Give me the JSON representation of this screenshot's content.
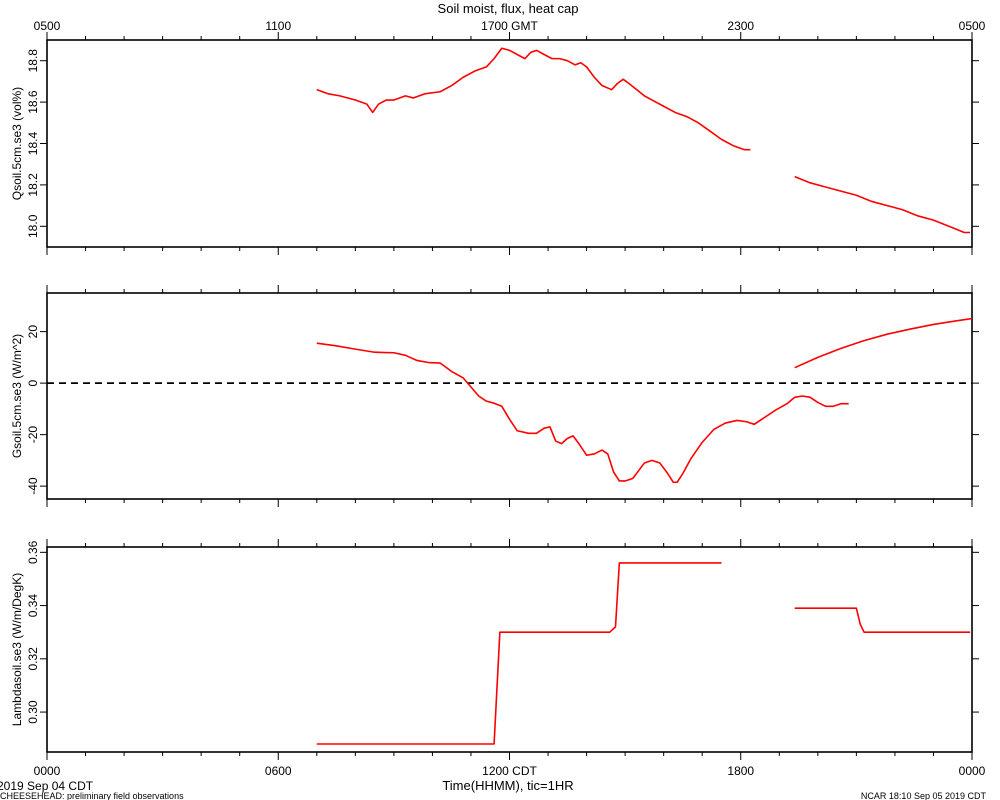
{
  "chart_data": {
    "type": "line",
    "title": "Soil moist, flux, heat cap",
    "top_axis": {
      "ticks": [
        {
          "h": 0,
          "label": "0500"
        },
        {
          "h": 6,
          "label": "1100"
        },
        {
          "h": 12,
          "label": "1700 GMT"
        },
        {
          "h": 18,
          "label": "2300"
        },
        {
          "h": 24,
          "label": "0500"
        }
      ]
    },
    "bottom_axis": {
      "xlabel": "Time(HHMM), tic=1HR",
      "ticks": [
        {
          "h": 0,
          "label": "0000"
        },
        {
          "h": 6,
          "label": "0600"
        },
        {
          "h": 12,
          "label": "1200 CDT"
        },
        {
          "h": 18,
          "label": "1800"
        },
        {
          "h": 24,
          "label": "0000"
        }
      ],
      "xlim": [
        0,
        24
      ],
      "minor_tick_interval_hours": 1
    },
    "footer": {
      "date": "2019 Sep 04 CDT",
      "left": "CHEESEHEAD: preliminary field observations",
      "right": "NCAR 18:10 Sep 05 2019 CDT"
    },
    "panels": [
      {
        "ylabel": "Qsoil.5cm.se3 (vol%)",
        "ylim": [
          17.9,
          18.9
        ],
        "yticks": [
          18.0,
          18.2,
          18.4,
          18.6,
          18.8
        ],
        "ytick_labels": [
          "18.0",
          "18.2",
          "18.4",
          "18.6",
          "18.8"
        ],
        "series": [
          {
            "color": "#ff0000",
            "segments": [
              [
                [
                  7.0,
                  18.66
                ],
                [
                  7.3,
                  18.64
                ],
                [
                  7.6,
                  18.63
                ],
                [
                  8.0,
                  18.61
                ],
                [
                  8.3,
                  18.59
                ],
                [
                  8.45,
                  18.55
                ],
                [
                  8.6,
                  18.59
                ],
                [
                  8.8,
                  18.61
                ],
                [
                  9.0,
                  18.61
                ],
                [
                  9.3,
                  18.63
                ],
                [
                  9.5,
                  18.62
                ],
                [
                  9.8,
                  18.64
                ],
                [
                  10.2,
                  18.65
                ],
                [
                  10.5,
                  18.68
                ],
                [
                  10.8,
                  18.72
                ],
                [
                  11.1,
                  18.75
                ],
                [
                  11.4,
                  18.77
                ],
                [
                  11.6,
                  18.81
                ],
                [
                  11.8,
                  18.86
                ],
                [
                  12.0,
                  18.85
                ],
                [
                  12.2,
                  18.83
                ],
                [
                  12.4,
                  18.81
                ],
                [
                  12.55,
                  18.84
                ],
                [
                  12.7,
                  18.85
                ],
                [
                  12.9,
                  18.83
                ],
                [
                  13.1,
                  18.81
                ],
                [
                  13.3,
                  18.81
                ],
                [
                  13.5,
                  18.8
                ],
                [
                  13.7,
                  18.78
                ],
                [
                  13.85,
                  18.79
                ],
                [
                  14.0,
                  18.77
                ],
                [
                  14.2,
                  18.72
                ],
                [
                  14.4,
                  18.68
                ],
                [
                  14.65,
                  18.66
                ],
                [
                  14.8,
                  18.69
                ],
                [
                  14.95,
                  18.71
                ],
                [
                  15.1,
                  18.69
                ],
                [
                  15.3,
                  18.66
                ],
                [
                  15.5,
                  18.63
                ],
                [
                  15.7,
                  18.61
                ],
                [
                  16.0,
                  18.58
                ],
                [
                  16.3,
                  18.55
                ],
                [
                  16.6,
                  18.53
                ],
                [
                  16.9,
                  18.5
                ],
                [
                  17.2,
                  18.46
                ],
                [
                  17.5,
                  18.42
                ],
                [
                  17.8,
                  18.39
                ],
                [
                  18.1,
                  18.37
                ],
                [
                  18.25,
                  18.37
                ]
              ],
              [
                [
                  19.4,
                  18.24
                ],
                [
                  19.8,
                  18.21
                ],
                [
                  20.2,
                  18.19
                ],
                [
                  20.6,
                  18.17
                ],
                [
                  21.0,
                  18.15
                ],
                [
                  21.4,
                  18.12
                ],
                [
                  21.8,
                  18.1
                ],
                [
                  22.2,
                  18.08
                ],
                [
                  22.6,
                  18.05
                ],
                [
                  23.0,
                  18.03
                ],
                [
                  23.4,
                  18.0
                ],
                [
                  23.8,
                  17.97
                ],
                [
                  23.95,
                  17.97
                ]
              ]
            ]
          }
        ]
      },
      {
        "ylabel": "Gsoil.5cm.se3 (W/m^2)",
        "ylim": [
          -45,
          35
        ],
        "yticks": [
          -40,
          -20,
          0,
          20
        ],
        "ytick_labels": [
          "-40",
          "-20",
          "0",
          "20"
        ],
        "reference_line": {
          "y": 0,
          "style": "dashed"
        },
        "series": [
          {
            "color": "#ff0000",
            "segments": [
              [
                [
                  7.0,
                  15.5
                ],
                [
                  7.5,
                  14.5
                ],
                [
                  8.0,
                  13.2
                ],
                [
                  8.5,
                  12.0
                ],
                [
                  9.0,
                  11.8
                ],
                [
                  9.3,
                  10.8
                ],
                [
                  9.6,
                  8.8
                ],
                [
                  9.9,
                  8.0
                ],
                [
                  10.2,
                  7.8
                ],
                [
                  10.5,
                  4.5
                ],
                [
                  10.8,
                  2.0
                ],
                [
                  11.0,
                  -1.5
                ],
                [
                  11.2,
                  -5.0
                ],
                [
                  11.4,
                  -7.0
                ],
                [
                  11.6,
                  -7.8
                ],
                [
                  11.8,
                  -9.0
                ],
                [
                  12.0,
                  -14.0
                ],
                [
                  12.2,
                  -18.5
                ],
                [
                  12.5,
                  -19.5
                ],
                [
                  12.7,
                  -19.5
                ],
                [
                  12.9,
                  -17.5
                ],
                [
                  13.05,
                  -17.0
                ],
                [
                  13.2,
                  -22.5
                ],
                [
                  13.35,
                  -23.5
                ],
                [
                  13.5,
                  -21.5
                ],
                [
                  13.65,
                  -20.5
                ],
                [
                  13.8,
                  -23.5
                ],
                [
                  14.0,
                  -28.0
                ],
                [
                  14.2,
                  -27.5
                ],
                [
                  14.4,
                  -26.0
                ],
                [
                  14.55,
                  -27.5
                ],
                [
                  14.7,
                  -34.5
                ],
                [
                  14.85,
                  -38.0
                ],
                [
                  15.0,
                  -38.0
                ],
                [
                  15.2,
                  -37.0
                ],
                [
                  15.35,
                  -34.0
                ],
                [
                  15.5,
                  -31.0
                ],
                [
                  15.7,
                  -30.0
                ],
                [
                  15.9,
                  -31.0
                ],
                [
                  16.1,
                  -35.0
                ],
                [
                  16.25,
                  -38.5
                ],
                [
                  16.35,
                  -38.5
                ],
                [
                  16.5,
                  -35.0
                ],
                [
                  16.7,
                  -29.5
                ],
                [
                  17.0,
                  -23.0
                ],
                [
                  17.3,
                  -18.0
                ],
                [
                  17.6,
                  -15.5
                ],
                [
                  17.9,
                  -14.5
                ],
                [
                  18.15,
                  -15.0
                ],
                [
                  18.35,
                  -16.0
                ],
                [
                  18.6,
                  -13.5
                ],
                [
                  18.9,
                  -10.5
                ],
                [
                  19.2,
                  -8.0
                ],
                [
                  19.4,
                  -5.5
                ],
                [
                  19.6,
                  -5.0
                ],
                [
                  19.8,
                  -5.5
                ],
                [
                  20.0,
                  -7.5
                ],
                [
                  20.2,
                  -9.0
                ],
                [
                  20.4,
                  -9.0
                ],
                [
                  20.6,
                  -8.0
                ],
                [
                  20.8,
                  -8.0
                ]
              ],
              [
                [
                  19.4,
                  6.0
                ],
                [
                  20.0,
                  10.0
                ],
                [
                  20.6,
                  13.5
                ],
                [
                  21.2,
                  16.5
                ],
                [
                  21.8,
                  19.0
                ],
                [
                  22.4,
                  21.0
                ],
                [
                  23.0,
                  22.8
                ],
                [
                  23.6,
                  24.2
                ],
                [
                  24.2,
                  25.5
                ],
                [
                  24.8,
                  26.5
                ],
                [
                  25.4,
                  27.5
                ],
                [
                  26.0,
                  28.2
                ],
                [
                  26.4,
                  28.8
                ]
              ]
            ]
          }
        ]
      },
      {
        "ylabel": "Lambdasoil.se3 (W/m/DegK)",
        "ylim": [
          0.285,
          0.362
        ],
        "yticks": [
          0.3,
          0.32,
          0.34,
          0.36
        ],
        "ytick_labels": [
          "0.30",
          "0.32",
          "0.34",
          "0.36"
        ],
        "series": [
          {
            "color": "#ff0000",
            "segments": [
              [
                [
                  7.0,
                  0.288
                ],
                [
                  11.6,
                  0.288
                ],
                [
                  11.75,
                  0.33
                ],
                [
                  14.6,
                  0.33
                ],
                [
                  14.75,
                  0.332
                ],
                [
                  14.85,
                  0.356
                ],
                [
                  17.5,
                  0.356
                ]
              ],
              [
                [
                  19.4,
                  0.339
                ],
                [
                  21.0,
                  0.339
                ],
                [
                  21.1,
                  0.333
                ],
                [
                  21.2,
                  0.33
                ],
                [
                  23.95,
                  0.33
                ]
              ]
            ]
          }
        ]
      }
    ]
  }
}
